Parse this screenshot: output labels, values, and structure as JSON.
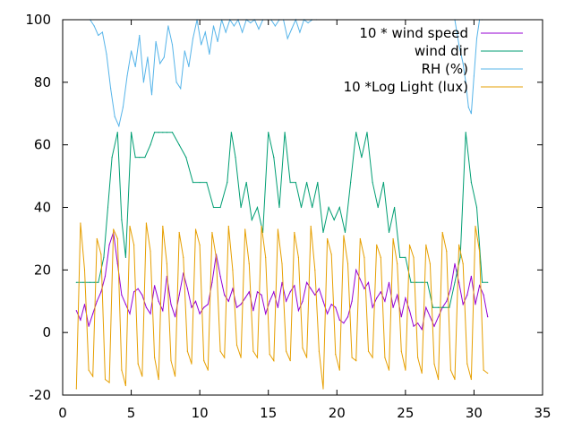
{
  "chart_data": {
    "type": "line",
    "title": "",
    "xlabel": "",
    "ylabel": "",
    "xlim": [
      0,
      35
    ],
    "ylim": [
      -20,
      100
    ],
    "x_ticks": [
      0,
      5,
      10,
      15,
      20,
      25,
      30,
      35
    ],
    "y_ticks": [
      -20,
      0,
      20,
      40,
      60,
      80,
      100
    ],
    "grid": false,
    "legend_position": "top-right",
    "series": [
      {
        "name": "10 * wind speed",
        "color": "#9400d3",
        "x": [
          1.0,
          1.3,
          1.6,
          1.9,
          2.2,
          2.5,
          2.8,
          3.1,
          3.4,
          3.7,
          4.0,
          4.3,
          4.6,
          4.9,
          5.2,
          5.5,
          5.8,
          6.1,
          6.4,
          6.7,
          7.0,
          7.3,
          7.6,
          7.9,
          8.2,
          8.5,
          8.8,
          9.1,
          9.4,
          9.7,
          10.0,
          10.3,
          10.6,
          10.9,
          11.2,
          11.5,
          11.8,
          12.1,
          12.4,
          12.7,
          13.0,
          13.3,
          13.6,
          13.9,
          14.2,
          14.5,
          14.8,
          15.1,
          15.4,
          15.7,
          16.0,
          16.3,
          16.6,
          16.9,
          17.2,
          17.5,
          17.8,
          18.1,
          18.4,
          18.7,
          19.0,
          19.3,
          19.6,
          19.9,
          20.2,
          20.5,
          20.8,
          21.1,
          21.4,
          21.7,
          22.0,
          22.3,
          22.6,
          22.9,
          23.2,
          23.5,
          23.8,
          24.1,
          24.4,
          24.7,
          25.0,
          25.3,
          25.6,
          25.9,
          26.2,
          26.5,
          26.8,
          27.1,
          27.4,
          27.7,
          28.0,
          28.3,
          28.6,
          28.9,
          29.2,
          29.5,
          29.8,
          30.1,
          30.4,
          30.7,
          31.0
        ],
        "y": [
          7,
          4,
          9,
          2,
          6,
          10,
          13,
          18,
          28,
          32,
          22,
          12,
          9,
          6,
          13,
          14,
          12,
          8,
          6,
          15,
          10,
          7,
          18,
          9,
          5,
          12,
          19,
          14,
          8,
          10,
          6,
          8,
          9,
          16,
          25,
          18,
          12,
          10,
          14,
          8,
          9,
          11,
          13,
          7,
          13,
          12,
          6,
          10,
          13,
          8,
          16,
          10,
          13,
          15,
          7,
          10,
          16,
          14,
          12,
          14,
          10,
          6,
          9,
          8,
          4,
          3,
          5,
          10,
          20,
          17,
          14,
          16,
          8,
          11,
          13,
          10,
          16,
          8,
          12,
          5,
          11,
          7,
          2,
          3,
          1,
          8,
          5,
          2,
          5,
          8,
          10,
          14,
          22,
          16,
          9,
          12,
          18,
          9,
          15,
          12,
          5
        ]
      },
      {
        "name": "wind dir",
        "color": "#009e73",
        "x": [
          1.0,
          1.5,
          2.0,
          2.3,
          2.6,
          3.0,
          3.3,
          3.6,
          4.0,
          4.3,
          4.6,
          5.0,
          5.3,
          5.6,
          6.0,
          6.4,
          6.7,
          7.0,
          7.3,
          7.6,
          8.0,
          8.5,
          9.0,
          9.5,
          10.0,
          10.5,
          11.0,
          11.5,
          12.0,
          12.3,
          12.6,
          13.0,
          13.4,
          13.8,
          14.2,
          14.6,
          15.0,
          15.4,
          15.8,
          16.2,
          16.6,
          17.0,
          17.4,
          17.8,
          18.2,
          18.6,
          19.0,
          19.4,
          19.8,
          20.2,
          20.6,
          21.0,
          21.4,
          21.8,
          22.2,
          22.6,
          23.0,
          23.4,
          23.8,
          24.2,
          24.6,
          25.0,
          25.4,
          25.8,
          26.2,
          26.6,
          27.0,
          27.4,
          27.8,
          28.2,
          28.6,
          29.0,
          29.4,
          29.8,
          30.2,
          30.6,
          31.0
        ],
        "y": [
          16,
          16,
          16,
          16,
          16,
          24,
          40,
          56,
          64,
          36,
          24,
          64,
          56,
          56,
          56,
          60,
          64,
          64,
          64,
          64,
          64,
          60,
          56,
          48,
          48,
          48,
          40,
          40,
          48,
          64,
          56,
          40,
          48,
          36,
          40,
          32,
          64,
          56,
          40,
          64,
          48,
          48,
          40,
          48,
          40,
          48,
          32,
          40,
          36,
          40,
          32,
          48,
          64,
          56,
          64,
          48,
          40,
          48,
          32,
          40,
          24,
          24,
          16,
          16,
          16,
          16,
          8,
          8,
          8,
          8,
          16,
          24,
          64,
          48,
          40,
          16,
          16
        ]
      },
      {
        "name": "RH (%)",
        "color": "#56b4e9",
        "x": [
          2.0,
          2.3,
          2.6,
          2.9,
          3.2,
          3.5,
          3.8,
          4.1,
          4.4,
          4.7,
          5.0,
          5.3,
          5.6,
          5.9,
          6.2,
          6.5,
          6.8,
          7.1,
          7.4,
          7.7,
          8.0,
          8.3,
          8.6,
          8.9,
          9.2,
          9.5,
          9.8,
          10.1,
          10.4,
          10.7,
          11.0,
          11.3,
          11.6,
          11.9,
          12.2,
          12.5,
          12.8,
          13.1,
          13.4,
          13.7,
          14.0,
          14.3,
          14.6,
          14.9,
          15.2,
          15.5,
          15.8,
          16.1,
          16.4,
          16.7,
          17.0,
          17.3,
          17.6,
          17.9,
          18.2,
          18.5,
          28.6,
          28.9,
          29.2,
          29.4,
          29.6,
          29.8,
          30.0,
          30.2,
          30.4,
          30.6
        ],
        "y": [
          100,
          98,
          95,
          96,
          89,
          78,
          69,
          66,
          72,
          82,
          90,
          85,
          95,
          80,
          88,
          76,
          93,
          86,
          88,
          98,
          92,
          80,
          78,
          90,
          85,
          94,
          100,
          92,
          96,
          89,
          98,
          93,
          100,
          96,
          100,
          98,
          100,
          96,
          100,
          99,
          100,
          97,
          100,
          100,
          100,
          98,
          100,
          100,
          94,
          97,
          100,
          96,
          100,
          99,
          100,
          100,
          100,
          92,
          86,
          80,
          72,
          70,
          82,
          94,
          100,
          100
        ]
      },
      {
        "name": "10 *Log Light (lux)",
        "color": "#e69f00",
        "x": [
          1.0,
          1.3,
          1.6,
          1.9,
          2.2,
          2.5,
          2.8,
          3.1,
          3.4,
          3.7,
          4.0,
          4.3,
          4.6,
          4.9,
          5.2,
          5.5,
          5.8,
          6.1,
          6.4,
          6.7,
          7.0,
          7.3,
          7.6,
          7.9,
          8.2,
          8.5,
          8.8,
          9.1,
          9.4,
          9.7,
          10.0,
          10.3,
          10.6,
          10.9,
          11.2,
          11.5,
          11.8,
          12.1,
          12.4,
          12.7,
          13.0,
          13.3,
          13.6,
          13.9,
          14.2,
          14.5,
          14.8,
          15.1,
          15.4,
          15.7,
          16.0,
          16.3,
          16.6,
          16.9,
          17.2,
          17.5,
          17.8,
          18.1,
          18.4,
          18.7,
          19.0,
          19.3,
          19.6,
          19.9,
          20.2,
          20.5,
          20.8,
          21.1,
          21.4,
          21.7,
          22.0,
          22.3,
          22.6,
          22.9,
          23.2,
          23.5,
          23.8,
          24.1,
          24.4,
          24.7,
          25.0,
          25.3,
          25.6,
          25.9,
          26.2,
          26.5,
          26.8,
          27.1,
          27.4,
          27.7,
          28.0,
          28.3,
          28.6,
          28.9,
          29.2,
          29.5,
          29.8,
          30.1,
          30.4,
          30.7,
          31.0
        ],
        "y": [
          -18,
          35,
          20,
          -12,
          -14,
          30,
          25,
          -15,
          -16,
          33,
          30,
          -12,
          -17,
          34,
          28,
          -10,
          -14,
          35,
          26,
          -8,
          -15,
          34,
          22,
          -9,
          -14,
          32,
          24,
          -6,
          -10,
          33,
          28,
          -9,
          -12,
          32,
          24,
          -6,
          -8,
          34,
          20,
          -4,
          -8,
          33,
          22,
          -6,
          -8,
          34,
          24,
          -7,
          -9,
          33,
          22,
          -6,
          -9,
          32,
          24,
          -5,
          -8,
          34,
          20,
          -6,
          -18,
          30,
          25,
          -7,
          -12,
          31,
          22,
          -8,
          -9,
          30,
          24,
          -6,
          -8,
          28,
          24,
          -8,
          -12,
          30,
          22,
          -6,
          -12,
          28,
          24,
          -8,
          -13,
          28,
          22,
          -10,
          -15,
          32,
          26,
          -12,
          -15,
          28,
          22,
          -10,
          -15,
          34,
          26,
          -12,
          -13
        ]
      }
    ]
  }
}
